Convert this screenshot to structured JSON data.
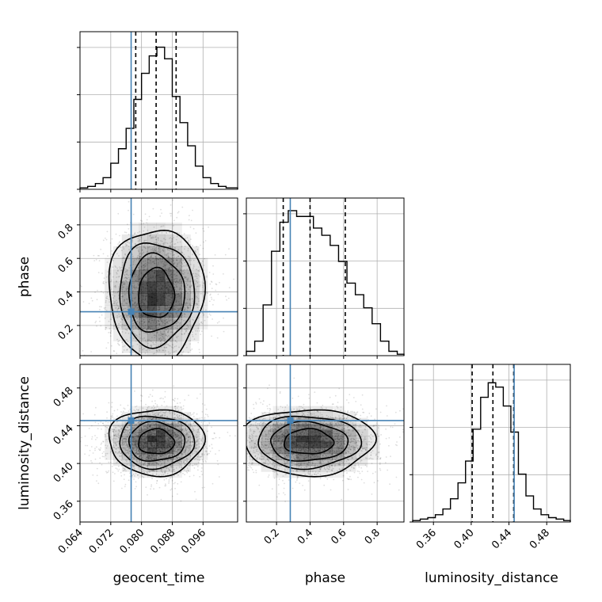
{
  "chart_data": {
    "type": "corner",
    "parameters": [
      "geocent_time",
      "phase",
      "luminosity_distance"
    ],
    "xlabels": [
      "geocent_time",
      "phase",
      "luminosity_distance"
    ],
    "ylabels": [
      "",
      "phase",
      "luminosity_distance"
    ],
    "ranges": [
      [
        0.064,
        0.105
      ],
      [
        0.02,
        0.96
      ],
      [
        0.338,
        0.505
      ]
    ],
    "ticks": {
      "geocent_time": [
        "0.064",
        "0.072",
        "0.080",
        "0.088",
        "0.096"
      ],
      "phase": [
        "0.2",
        "0.4",
        "0.6",
        "0.8"
      ],
      "luminosity_distance": [
        "0.36",
        "0.40",
        "0.44",
        "0.48"
      ]
    },
    "injection": {
      "geocent_time": 0.0773,
      "phase": 0.282,
      "luminosity_distance": 0.4455
    },
    "quantiles": {
      "geocent_time": [
        0.0785,
        0.0838,
        0.089
      ],
      "phase": [
        0.24,
        0.4,
        0.61
      ],
      "luminosity_distance": [
        0.401,
        0.423,
        0.445
      ]
    },
    "histograms": {
      "geocent_time": {
        "edges": [
          0.064,
          0.066,
          0.068,
          0.07,
          0.072,
          0.074,
          0.076,
          0.078,
          0.08,
          0.082,
          0.084,
          0.086,
          0.088,
          0.09,
          0.092,
          0.094,
          0.096,
          0.098,
          0.1,
          0.102,
          0.105
        ],
        "counts": [
          0.01,
          0.02,
          0.04,
          0.08,
          0.18,
          0.28,
          0.42,
          0.62,
          0.8,
          0.92,
          0.98,
          0.9,
          0.64,
          0.46,
          0.3,
          0.16,
          0.08,
          0.04,
          0.02,
          0.01
        ]
      },
      "phase": {
        "edges": [
          0.02,
          0.07,
          0.12,
          0.17,
          0.22,
          0.27,
          0.32,
          0.37,
          0.42,
          0.47,
          0.52,
          0.57,
          0.62,
          0.67,
          0.72,
          0.77,
          0.82,
          0.87,
          0.92,
          0.96
        ],
        "counts": [
          0.03,
          0.1,
          0.35,
          0.72,
          0.92,
          1.0,
          0.96,
          0.96,
          0.88,
          0.83,
          0.76,
          0.65,
          0.5,
          0.42,
          0.33,
          0.22,
          0.1,
          0.03,
          0.01
        ]
      },
      "luminosity_distance": {
        "edges": [
          0.338,
          0.346,
          0.354,
          0.362,
          0.37,
          0.378,
          0.386,
          0.394,
          0.402,
          0.41,
          0.418,
          0.426,
          0.434,
          0.442,
          0.45,
          0.458,
          0.466,
          0.474,
          0.482,
          0.49,
          0.498,
          0.505
        ],
        "counts": [
          0.01,
          0.02,
          0.03,
          0.05,
          0.09,
          0.16,
          0.27,
          0.42,
          0.64,
          0.86,
          0.96,
          0.93,
          0.8,
          0.62,
          0.33,
          0.18,
          0.09,
          0.05,
          0.03,
          0.02,
          0.01
        ]
      }
    },
    "posterior_2d": {
      "phase_vs_geocent_time": {
        "center": [
          0.0838,
          0.39
        ],
        "std": [
          0.006,
          0.19
        ],
        "contour_levels": [
          0.12,
          0.27,
          0.48,
          0.74
        ]
      },
      "luminosity_distance_vs_geocent_time": {
        "center": [
          0.0838,
          0.423
        ],
        "std": [
          0.006,
          0.017
        ],
        "contour_levels": [
          0.12,
          0.27,
          0.48,
          0.74
        ]
      },
      "luminosity_distance_vs_phase": {
        "center": [
          0.39,
          0.423
        ],
        "std": [
          0.19,
          0.017
        ],
        "contour_levels": [
          0.12,
          0.27,
          0.48,
          0.74
        ]
      }
    },
    "colors": {
      "injection": "#4682b4",
      "histogram": "#000000",
      "grid": "#b0b0b0",
      "density": "#000000",
      "scatter": "#000000"
    },
    "grid": true
  }
}
